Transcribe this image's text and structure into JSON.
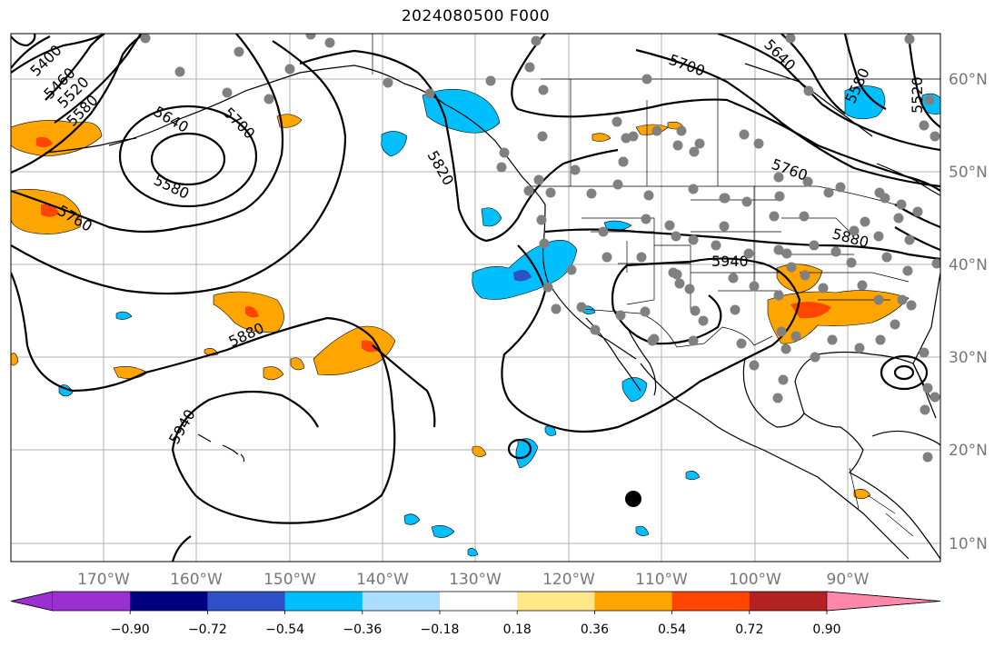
{
  "title": "2024080500 F000",
  "longitude_labels": [
    "170°W",
    "160°W",
    "150°W",
    "140°W",
    "130°W",
    "120°W",
    "110°W",
    "100°W",
    "90°W"
  ],
  "latitude_labels": [
    "60°N",
    "50°N",
    "40°N",
    "30°N",
    "20°N",
    "10°N"
  ],
  "contour_labels": [
    "5400",
    "5460",
    "5520",
    "5580",
    "5640",
    "5700",
    "5580",
    "5760",
    "5820",
    "5880",
    "5940",
    "5700",
    "5640",
    "5580",
    "5520",
    "5760",
    "5880",
    "5940"
  ],
  "colorbar": {
    "colors": [
      "#9b30d0",
      "#000080",
      "#3050c8",
      "#00bfff",
      "#aadfff",
      "#ffffff",
      "#ffe88a",
      "#ffa500",
      "#ff4500",
      "#b22222",
      "#ff88aa"
    ],
    "tick_labels": [
      "−0.90",
      "−0.72",
      "−0.54",
      "−0.36",
      "−0.18",
      "0.18",
      "0.36",
      "0.54",
      "0.72",
      "0.90"
    ]
  },
  "station_marker_color": "#808080",
  "storm_marker_color": "#000000"
}
